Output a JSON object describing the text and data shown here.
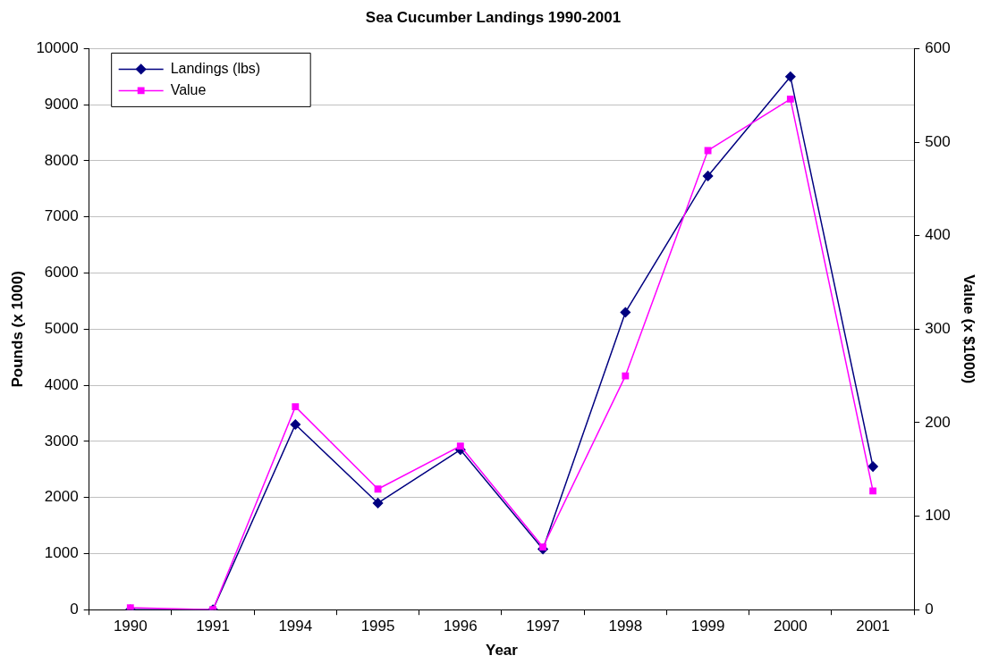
{
  "chart_data": {
    "type": "line",
    "title": "Sea Cucumber Landings 1990-2001",
    "xlabel": "Year",
    "ylabel": "Pounds (x 1000)",
    "y2label": "Value (x $1000)",
    "categories": [
      "1990",
      "1991",
      "1994",
      "1995",
      "1996",
      "1997",
      "1998",
      "1999",
      "2000",
      "2001"
    ],
    "series": [
      {
        "name": "Landings (lbs)",
        "color": "#000080",
        "marker": "diamond",
        "values": [
          0,
          0,
          3300,
          1900,
          2850,
          1080,
          5300,
          7730,
          9500,
          2550
        ]
      },
      {
        "name": "Value",
        "color": "#ff00ff",
        "marker": "square",
        "axis": "y2",
        "values": [
          2,
          0,
          217,
          129,
          175,
          67,
          250,
          491,
          546,
          127
        ]
      }
    ],
    "ylim": [
      0,
      10000
    ],
    "yticks": [
      0,
      1000,
      2000,
      3000,
      4000,
      5000,
      6000,
      7000,
      8000,
      9000,
      10000
    ],
    "y2lim": [
      0,
      600
    ],
    "y2ticks": [
      0,
      100,
      200,
      300,
      400,
      500,
      600
    ],
    "grid": "y",
    "legend": "top left",
    "line_style": "solid"
  }
}
